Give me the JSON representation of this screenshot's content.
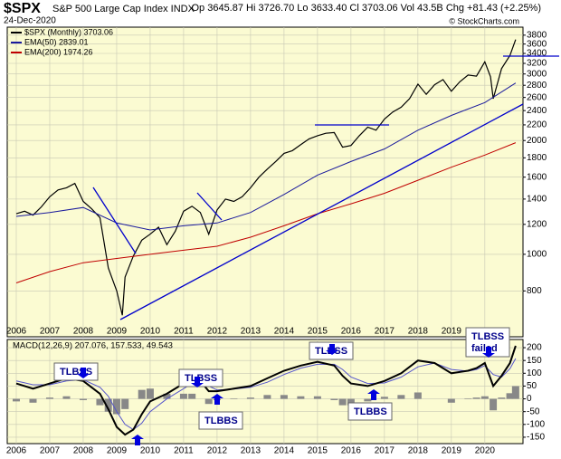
{
  "chart_data": [
    {
      "type": "line",
      "symbol": "$SPX",
      "title": "S&P 500 Large Cap Index INDX",
      "date": "24-Dec-2020",
      "quote": "Op 3645.87 Hi 3726.70 Lo 3633.40 Cl 3703.06 Vol 43.5B Chg +81.43 (+2.25%)",
      "credit": "© StockCharts.com",
      "log_scale": true,
      "grid": true,
      "xlim": [
        2005.73,
        2021.14
      ],
      "xticks": [
        2006,
        2007,
        2008,
        2009,
        2010,
        2011,
        2012,
        2013,
        2014,
        2015,
        2016,
        2017,
        2018,
        2019,
        2020
      ],
      "ylim": [
        605,
        3990
      ],
      "yticks": [
        800,
        1000,
        1200,
        1400,
        1600,
        1800,
        2000,
        2200,
        2400,
        2600,
        2800,
        3000,
        3200,
        3400,
        3600,
        3800
      ],
      "series": [
        {
          "name": "$SPX (Monthly) 3703.06",
          "color": "#000000",
          "x": [
            2006,
            2006.25,
            2006.5,
            2006.75,
            2007,
            2007.25,
            2007.5,
            2007.75,
            2008,
            2008.25,
            2008.5,
            2008.75,
            2009,
            2009.17,
            2009.25,
            2009.5,
            2009.75,
            2010,
            2010.25,
            2010.5,
            2010.75,
            2011,
            2011.25,
            2011.5,
            2011.75,
            2012,
            2012.25,
            2012.5,
            2012.75,
            2013,
            2013.25,
            2013.5,
            2013.75,
            2014,
            2014.25,
            2014.5,
            2014.75,
            2015,
            2015.25,
            2015.5,
            2015.75,
            2016,
            2016.25,
            2016.5,
            2016.75,
            2017,
            2017.25,
            2017.5,
            2017.75,
            2018,
            2018.25,
            2018.5,
            2018.75,
            2019,
            2019.25,
            2019.5,
            2019.75,
            2020,
            2020.17,
            2020.25,
            2020.5,
            2020.75,
            2020.92
          ],
          "values": [
            1280,
            1300,
            1270,
            1335,
            1420,
            1480,
            1500,
            1540,
            1380,
            1320,
            1250,
            920,
            800,
            690,
            870,
            990,
            1090,
            1130,
            1180,
            1060,
            1150,
            1300,
            1340,
            1290,
            1130,
            1310,
            1400,
            1380,
            1420,
            1500,
            1600,
            1680,
            1760,
            1850,
            1880,
            1950,
            2020,
            2060,
            2090,
            2100,
            1920,
            1940,
            2060,
            2170,
            2130,
            2280,
            2380,
            2450,
            2580,
            2820,
            2650,
            2810,
            2900,
            2700,
            2860,
            2980,
            2960,
            3230,
            2950,
            2580,
            3100,
            3360,
            3700
          ]
        },
        {
          "name": "EMA(50) 2839.01",
          "color": "#1a1a9c",
          "x": [
            2006,
            2007,
            2008,
            2009,
            2010,
            2011,
            2012,
            2013,
            2014,
            2015,
            2016,
            2017,
            2018,
            2019,
            2020,
            2020.92
          ],
          "values": [
            1260,
            1290,
            1330,
            1210,
            1160,
            1190,
            1210,
            1290,
            1440,
            1620,
            1760,
            1900,
            2130,
            2330,
            2520,
            2839
          ]
        },
        {
          "name": "EMA(200) 1974.26",
          "color": "#c00000",
          "x": [
            2006,
            2007,
            2008,
            2009,
            2010,
            2011,
            2012,
            2013,
            2014,
            2015,
            2016,
            2017,
            2018,
            2019,
            2020,
            2020.92
          ],
          "values": [
            840,
            900,
            950,
            975,
            1000,
            1025,
            1050,
            1110,
            1190,
            1280,
            1360,
            1450,
            1570,
            1700,
            1830,
            1974
          ]
        }
      ]
    },
    {
      "type": "line",
      "legend": "MACD(12,26,9) 207.076, 157.533, 49.543",
      "grid": true,
      "xlim": [
        2005.73,
        2021.14
      ],
      "xticks": [
        2006,
        2007,
        2008,
        2009,
        2010,
        2011,
        2012,
        2013,
        2014,
        2015,
        2016,
        2017,
        2018,
        2019,
        2020
      ],
      "ylim": [
        -175,
        232
      ],
      "yticks": [
        -150,
        -100,
        -50,
        0,
        50,
        100,
        150,
        200
      ],
      "annotations": [
        [
          "TLBSS"
        ],
        [
          "TLBSS"
        ],
        [
          "TLBBS"
        ],
        [
          "TLBSS"
        ],
        [
          "TLBBS"
        ],
        [
          "TLBSS",
          "failed"
        ]
      ],
      "series": [
        {
          "style": "bar",
          "color": "#888888",
          "x": [
            2006,
            2006.5,
            2007,
            2007.5,
            2008,
            2008.5,
            2008.75,
            2009,
            2009.25,
            2009.5,
            2009.75,
            2010,
            2010.5,
            2011,
            2011.25,
            2011.5,
            2011.75,
            2012,
            2012.5,
            2013,
            2013.5,
            2014,
            2014.5,
            2015,
            2015.5,
            2015.75,
            2016,
            2016.5,
            2017,
            2017.5,
            2018,
            2018.5,
            2019,
            2019.5,
            2019.75,
            2020,
            2020.25,
            2020.5,
            2020.75,
            2020.92
          ],
          "values": [
            -10,
            -15,
            5,
            10,
            -5,
            -25,
            -50,
            -60,
            -40,
            0,
            35,
            40,
            20,
            20,
            20,
            0,
            -20,
            -5,
            2,
            5,
            15,
            15,
            10,
            10,
            -5,
            -25,
            -25,
            -10,
            8,
            15,
            25,
            0,
            -15,
            2,
            5,
            10,
            -45,
            5,
            22,
            49.543
          ]
        },
        {
          "style": "line",
          "color": "#5555cc",
          "width": 1,
          "x": [
            2006,
            2006.5,
            2007,
            2007.5,
            2008,
            2008.5,
            2008.75,
            2009,
            2009.25,
            2009.5,
            2009.75,
            2010,
            2010.5,
            2011,
            2011.25,
            2011.5,
            2011.75,
            2012,
            2012.5,
            2013,
            2013.5,
            2014,
            2014.5,
            2015,
            2015.5,
            2015.75,
            2016,
            2016.5,
            2017,
            2017.5,
            2018,
            2018.5,
            2019,
            2019.5,
            2019.75,
            2020,
            2020.25,
            2020.5,
            2020.75,
            2020.92
          ],
          "values": [
            70,
            55,
            55,
            70,
            75,
            45,
            10,
            -50,
            -100,
            -120,
            -95,
            -50,
            0,
            40,
            60,
            70,
            50,
            35,
            38,
            45,
            65,
            95,
            120,
            135,
            135,
            115,
            85,
            60,
            62,
            85,
            125,
            140,
            115,
            108,
            115,
            130,
            95,
            85,
            118,
            157.533
          ]
        },
        {
          "style": "line",
          "color": "#000000",
          "width": 2,
          "x": [
            2006,
            2006.5,
            2007,
            2007.5,
            2008,
            2008.5,
            2008.75,
            2009,
            2009.25,
            2009.5,
            2009.75,
            2010,
            2010.5,
            2011,
            2011.25,
            2011.5,
            2011.75,
            2012,
            2012.5,
            2013,
            2013.5,
            2014,
            2014.5,
            2015,
            2015.5,
            2015.75,
            2016,
            2016.5,
            2017,
            2017.5,
            2018,
            2018.5,
            2019,
            2019.5,
            2019.75,
            2020,
            2020.25,
            2020.5,
            2020.75,
            2020.92
          ],
          "values": [
            60,
            40,
            60,
            80,
            70,
            20,
            -40,
            -110,
            -140,
            -120,
            -60,
            -10,
            20,
            60,
            80,
            70,
            30,
            30,
            40,
            50,
            80,
            110,
            130,
            145,
            130,
            90,
            60,
            50,
            70,
            100,
            150,
            140,
            100,
            110,
            120,
            140,
            50,
            90,
            140,
            207.076
          ]
        }
      ]
    }
  ]
}
